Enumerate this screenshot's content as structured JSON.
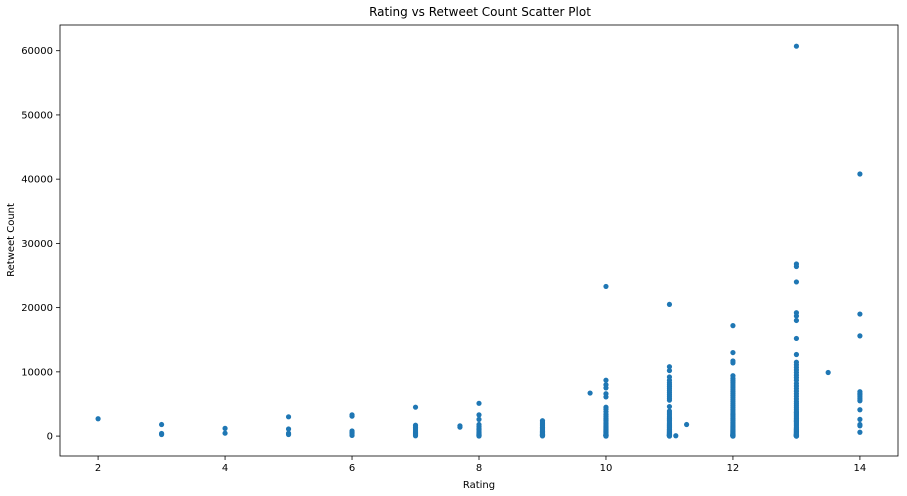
{
  "chart_data": {
    "type": "scatter",
    "title": "Rating vs Retweet Count Scatter Plot",
    "xlabel": "Rating",
    "ylabel": "Retweet Count",
    "xlim": [
      1.4,
      14.6
    ],
    "ylim": [
      -3100,
      64000
    ],
    "xticks": [
      2,
      4,
      6,
      8,
      10,
      12,
      14
    ],
    "yticks": [
      0,
      10000,
      20000,
      30000,
      40000,
      50000,
      60000
    ],
    "grid": false,
    "marker_color": "#1f77b4",
    "x": [
      2,
      3,
      3,
      3,
      4,
      4,
      5,
      5,
      5,
      5,
      6,
      6,
      6,
      6,
      6,
      6,
      7,
      7,
      7,
      7,
      7,
      7,
      7,
      7,
      7,
      7.7,
      7.7,
      8,
      8,
      8,
      8,
      8,
      8,
      8,
      8,
      8,
      8,
      8,
      8,
      8,
      8,
      8,
      8,
      9,
      9,
      9,
      9,
      9,
      9,
      9,
      9,
      9,
      9,
      9,
      9,
      9,
      9,
      9,
      9,
      9,
      9,
      9,
      9,
      9.75,
      10,
      10,
      10,
      10,
      10,
      10,
      10,
      10,
      10,
      10,
      10,
      10,
      10,
      10,
      10,
      10,
      10,
      10,
      10,
      10,
      10,
      10,
      10,
      10,
      10,
      10,
      10,
      10,
      10,
      10,
      10,
      10,
      10,
      10,
      10,
      10,
      10,
      10,
      10,
      10,
      10,
      10,
      11,
      11,
      11,
      11,
      11,
      11,
      11,
      11,
      11,
      11,
      11,
      11,
      11,
      11,
      11,
      11,
      11,
      11,
      11,
      11,
      11,
      11,
      11,
      11,
      11,
      11,
      11,
      11,
      11,
      11,
      11,
      11,
      11,
      11,
      11,
      11,
      11,
      11,
      11,
      11,
      11,
      11,
      11,
      11,
      11,
      11,
      11,
      11,
      11,
      11,
      11.1,
      11.27,
      12,
      12,
      12,
      12,
      12,
      12,
      12,
      12,
      12,
      12,
      12,
      12,
      12,
      12,
      12,
      12,
      12,
      12,
      12,
      12,
      12,
      12,
      12,
      12,
      12,
      12,
      12,
      12,
      12,
      12,
      12,
      12,
      12,
      12,
      12,
      12,
      12,
      12,
      12,
      12,
      12,
      12,
      12,
      12,
      12,
      12,
      12,
      12,
      12,
      12,
      12,
      12,
      12,
      12,
      12,
      12,
      12,
      12,
      12,
      12,
      12,
      12,
      13,
      13,
      13,
      13,
      13,
      13,
      13,
      13,
      13,
      13,
      13,
      13,
      13,
      13,
      13,
      13,
      13,
      13,
      13,
      13,
      13,
      13,
      13,
      13,
      13,
      13,
      13,
      13,
      13,
      13,
      13,
      13,
      13,
      13,
      13,
      13,
      13,
      13,
      13,
      13,
      13,
      13,
      13,
      13,
      13,
      13,
      13,
      13,
      13,
      13,
      13,
      13,
      13,
      13,
      13,
      13,
      13,
      13,
      13,
      13,
      13,
      13,
      13,
      13,
      13,
      13,
      13,
      13,
      13,
      13,
      13.5,
      14,
      14,
      14,
      14,
      14,
      14,
      14,
      14,
      14,
      14,
      14,
      14,
      14,
      14
    ],
    "y": [
      2700,
      1800,
      400,
      250,
      1200,
      450,
      3000,
      1100,
      450,
      250,
      3300,
      3100,
      800,
      600,
      350,
      100,
      4500,
      1700,
      1400,
      1100,
      800,
      600,
      400,
      200,
      50,
      1600,
      1400,
      5100,
      3300,
      2600,
      1800,
      1500,
      1200,
      1000,
      800,
      600,
      450,
      300,
      200,
      120,
      60,
      30,
      10,
      2400,
      2200,
      2000,
      1800,
      1600,
      1400,
      1250,
      1100,
      950,
      800,
      700,
      600,
      500,
      400,
      300,
      220,
      150,
      100,
      60,
      20,
      6700,
      23300,
      8700,
      8000,
      7500,
      6600,
      6100,
      4500,
      4200,
      3800,
      3400,
      3100,
      2800,
      2600,
      2400,
      2200,
      2000,
      1800,
      1600,
      1450,
      1300,
      1150,
      1000,
      900,
      800,
      700,
      600,
      500,
      400,
      330,
      270,
      220,
      180,
      150,
      120,
      100,
      80,
      60,
      45,
      30,
      20,
      10,
      5,
      20500,
      10800,
      10200,
      9200,
      8700,
      8300,
      8000,
      7700,
      7400,
      7100,
      6800,
      6500,
      6200,
      5900,
      5600,
      4600,
      3900,
      3600,
      3300,
      3000,
      2800,
      2600,
      2400,
      2200,
      2000,
      1850,
      1700,
      1550,
      1400,
      1250,
      1100,
      1000,
      900,
      800,
      700,
      600,
      520,
      440,
      370,
      300,
      250,
      200,
      160,
      120,
      90,
      60,
      40,
      25,
      15,
      5,
      50,
      1800,
      17200,
      13000,
      11700,
      11400,
      9400,
      9000,
      8700,
      8400,
      8100,
      7800,
      7500,
      7200,
      6900,
      6600,
      6300,
      6000,
      5700,
      5400,
      5100,
      4800,
      4500,
      4200,
      3900,
      3600,
      3400,
      3200,
      3000,
      2800,
      2600,
      2400,
      2200,
      2050,
      1900,
      1750,
      1600,
      1450,
      1300,
      1180,
      1060,
      950,
      850,
      750,
      660,
      580,
      500,
      430,
      370,
      310,
      260,
      220,
      180,
      150,
      120,
      95,
      75,
      55,
      40,
      30,
      20,
      12,
      6,
      2,
      60700,
      26800,
      26400,
      24000,
      19200,
      18700,
      18000,
      15200,
      12700,
      11500,
      11100,
      10700,
      10300,
      9900,
      9500,
      9100,
      8700,
      8200,
      7800,
      7400,
      7000,
      6600,
      6200,
      5800,
      5400,
      5100,
      4800,
      4500,
      4200,
      3900,
      3600,
      3400,
      3200,
      3000,
      2800,
      2600,
      2400,
      2200,
      2000,
      1800,
      1600,
      1400,
      1200,
      1000,
      900,
      800,
      700,
      600,
      500,
      420,
      350,
      290,
      240,
      200,
      160,
      130,
      100,
      80,
      60,
      45,
      35,
      25,
      15,
      10,
      5,
      2,
      3700,
      2300,
      1100,
      250,
      9900,
      40800,
      19000,
      15600,
      6900,
      6600,
      6400,
      6100,
      5800,
      5500,
      4100,
      2600,
      1800,
      1600,
      600
    ]
  }
}
